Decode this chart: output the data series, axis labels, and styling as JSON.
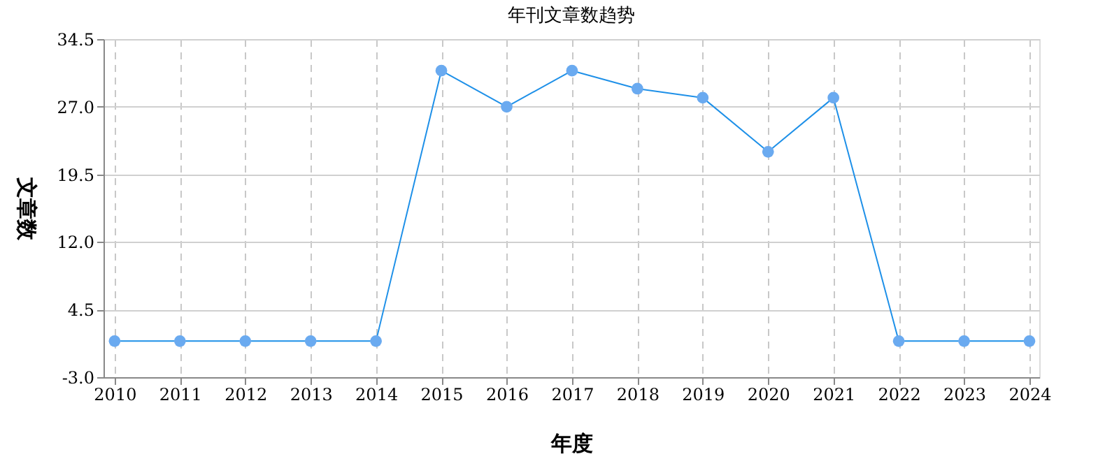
{
  "chart_data": {
    "type": "line",
    "title": "年刊文章数趋势",
    "xlabel": "年度",
    "ylabel": "文章数",
    "categories": [
      "2010",
      "2011",
      "2012",
      "2013",
      "2014",
      "2015",
      "2016",
      "2017",
      "2018",
      "2019",
      "2020",
      "2021",
      "2022",
      "2023",
      "2024"
    ],
    "series": [
      {
        "color": "#1e90e8",
        "values": [
          1,
          1,
          1,
          1,
          1,
          31,
          27,
          31,
          29,
          28,
          22,
          28,
          1,
          1,
          1
        ]
      }
    ],
    "ylim": [
      -3,
      34.5
    ],
    "yticks": [
      {
        "value": -3,
        "label": "-3.0"
      },
      {
        "value": 4.5,
        "label": "4.5"
      },
      {
        "value": 12,
        "label": "12.0"
      },
      {
        "value": 19.5,
        "label": "19.5"
      },
      {
        "value": 27,
        "label": "27.0"
      },
      {
        "value": 34.5,
        "label": "34.5"
      }
    ],
    "grid": true,
    "marker": "circle",
    "line_style": "solid"
  }
}
